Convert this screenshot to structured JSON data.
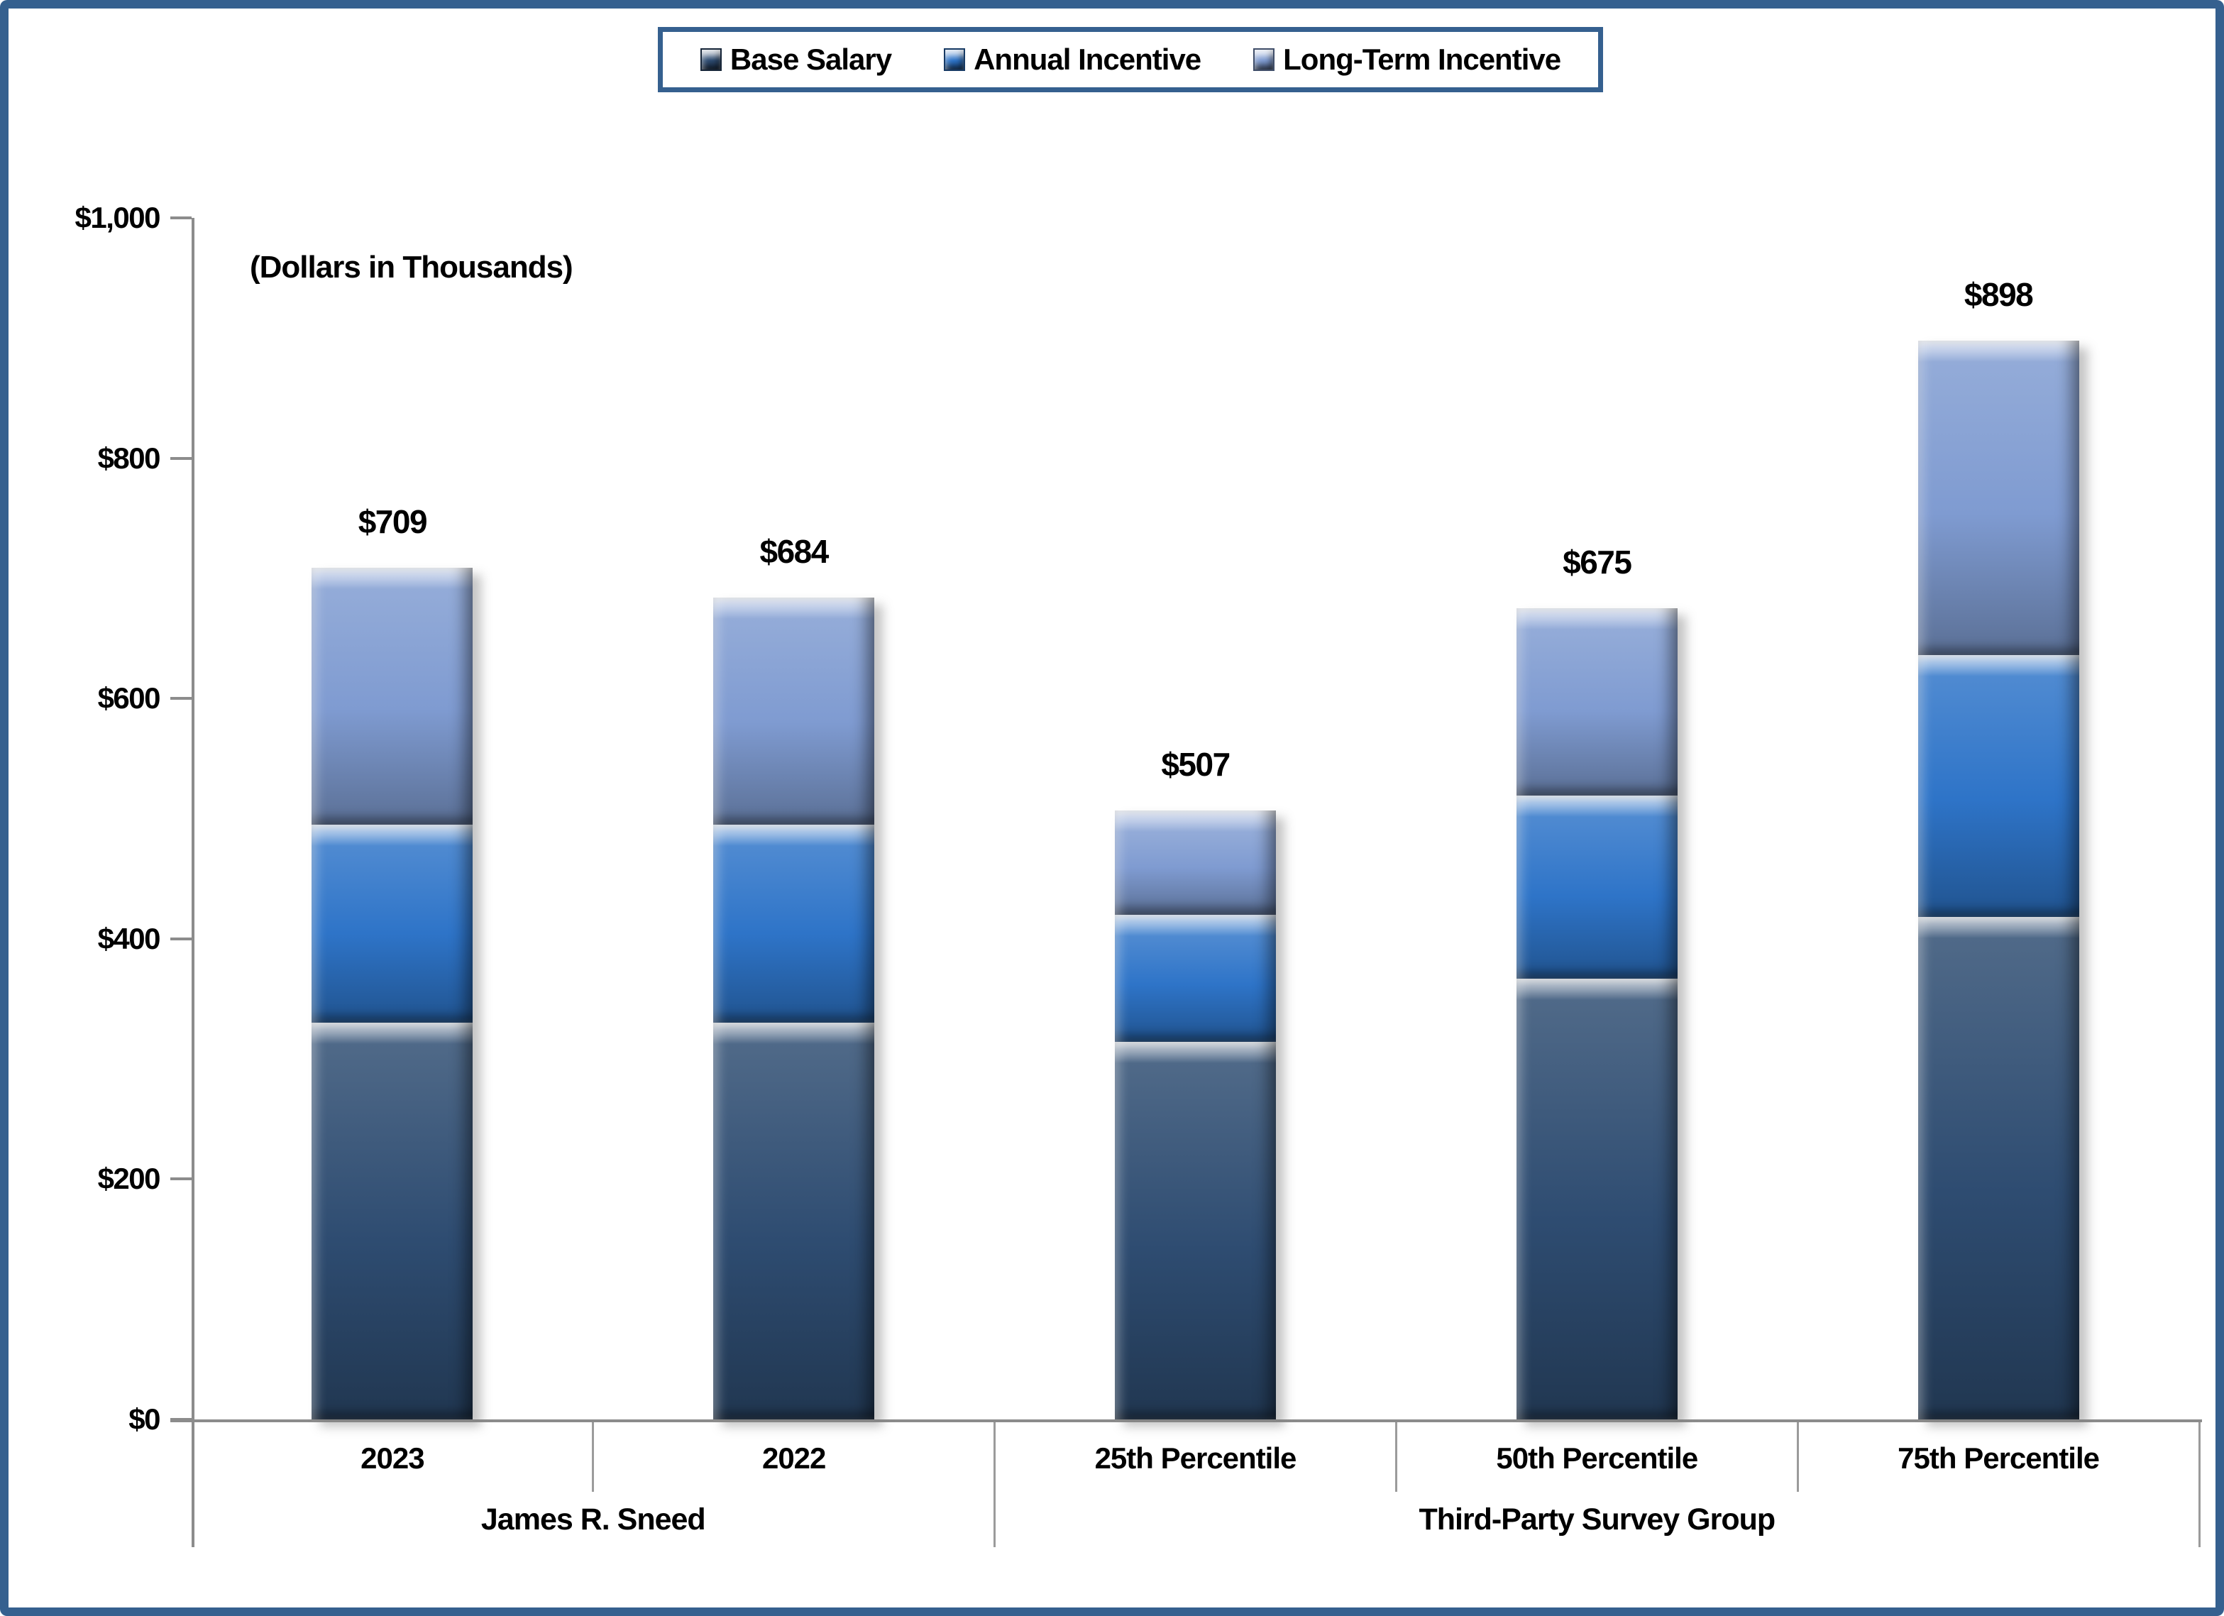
{
  "frame": {
    "border_color": "#35608F",
    "background": "#FFFFFF"
  },
  "legend": {
    "border_color": "#35608F",
    "items": [
      {
        "label": "Base Salary",
        "color": "#2E4C71"
      },
      {
        "label": "Annual Incentive",
        "color": "#2E74C8"
      },
      {
        "label": "Long-Term Incentive",
        "color": "#7F9BD1"
      }
    ]
  },
  "chart_data": {
    "type": "bar",
    "stacked": true,
    "grid": false,
    "legend_position": "top",
    "units_note": "(Dollars in Thousands)",
    "categories": [
      "2023",
      "2022",
      "25th Percentile",
      "50th Percentile",
      "75th Percentile"
    ],
    "category_groups": [
      {
        "label": "James R. Sneed",
        "span": [
          0,
          1
        ]
      },
      {
        "label": "Third-Party Survey Group",
        "span": [
          2,
          4
        ]
      }
    ],
    "series": [
      {
        "name": "Base Salary",
        "color": "#2E4C71",
        "values": [
          330,
          330,
          314,
          367,
          418
        ]
      },
      {
        "name": "Annual Incentive",
        "color": "#2E74C8",
        "values": [
          165,
          165,
          106,
          152,
          218
        ]
      },
      {
        "name": "Long-Term Incentive",
        "color": "#7F9BD1",
        "values": [
          214,
          189,
          87,
          156,
          262
        ]
      }
    ],
    "totals": [
      709,
      684,
      507,
      675,
      898
    ],
    "total_labels": [
      "$709",
      "$684",
      "$507",
      "$675",
      "$898"
    ],
    "y_axis": {
      "min": 0,
      "max": 1000,
      "tick_step": 200,
      "tick_labels": [
        "$0",
        "$200",
        "$400",
        "$600",
        "$800",
        "$1,000"
      ]
    },
    "axis_color": "#8C8C8C"
  }
}
